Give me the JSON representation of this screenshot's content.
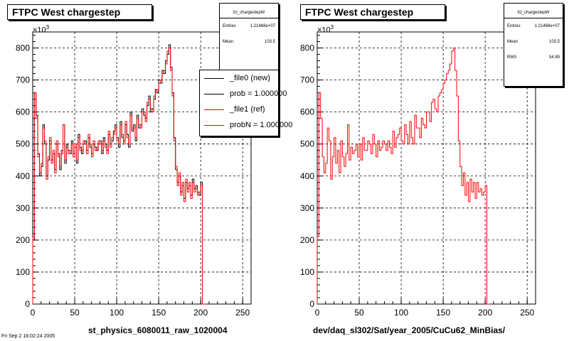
{
  "chart_data": [
    {
      "type": "line",
      "title": "FTPC West chargestep",
      "xlabel": "st_physics_6080011_raw_1020004",
      "ylabel": "",
      "y_exponent_label": "×10",
      "y_exponent_power": "3",
      "xlim": [
        0,
        260
      ],
      "ylim": [
        0,
        850
      ],
      "xticks": [
        "0",
        "50",
        "100",
        "150",
        "200",
        "250"
      ],
      "yticks": [
        "0",
        "100",
        "200",
        "300",
        "400",
        "500",
        "600",
        "700",
        "800"
      ],
      "grid": true,
      "stats": {
        "name": "fcl_chargestepW",
        "rows": [
          {
            "label": "Entries",
            "value": "1.21468e+07"
          },
          {
            "label": "Mean",
            "value": "103.5"
          }
        ]
      },
      "legend": {
        "placement": "top-right",
        "entries": [
          {
            "label": "_file0 (new)",
            "color": "#000000"
          },
          {
            "label": "prob = 1.000000",
            "color": "#000000"
          },
          {
            "label": "_file1 (ref)",
            "color": "#ff0000"
          },
          {
            "label": "probN = 1.000000",
            "color": "#ff0000"
          }
        ]
      },
      "series": [
        {
          "name": "_file0 (new)",
          "color": "#000000",
          "x": [
            0,
            2,
            4,
            6,
            8,
            10,
            12,
            14,
            16,
            18,
            20,
            22,
            24,
            26,
            28,
            30,
            32,
            34,
            36,
            38,
            40,
            42,
            44,
            46,
            48,
            50,
            52,
            54,
            56,
            58,
            60,
            62,
            64,
            66,
            68,
            70,
            72,
            74,
            76,
            78,
            80,
            82,
            84,
            86,
            88,
            90,
            92,
            94,
            96,
            98,
            100,
            102,
            104,
            106,
            108,
            110,
            112,
            114,
            116,
            118,
            120,
            122,
            124,
            126,
            128,
            130,
            132,
            134,
            136,
            138,
            140,
            142,
            144,
            146,
            148,
            150,
            152,
            154,
            156,
            158,
            160,
            162,
            164,
            166,
            168,
            170,
            172,
            174,
            176,
            178,
            180,
            182,
            184,
            186,
            188,
            190,
            192,
            194,
            196,
            198,
            200,
            202,
            204
          ],
          "y": [
            200,
            660,
            590,
            470,
            400,
            430,
            560,
            500,
            400,
            450,
            510,
            450,
            470,
            420,
            500,
            470,
            420,
            480,
            560,
            440,
            500,
            480,
            470,
            510,
            470,
            490,
            440,
            530,
            490,
            470,
            500,
            510,
            480,
            520,
            490,
            470,
            500,
            490,
            480,
            500,
            510,
            470,
            520,
            500,
            480,
            530,
            500,
            510,
            540,
            560,
            520,
            490,
            570,
            520,
            510,
            560,
            530,
            490,
            600,
            540,
            560,
            510,
            590,
            550,
            560,
            610,
            590,
            580,
            620,
            650,
            600,
            610,
            640,
            670,
            660,
            700,
            690,
            730,
            720,
            760,
            780,
            810,
            740,
            660,
            520,
            420,
            380,
            400,
            350,
            370,
            330,
            380,
            360,
            370,
            340,
            390,
            360,
            370,
            350,
            340,
            380,
            0,
            0
          ]
        },
        {
          "name": "_file1 (ref)",
          "color": "#ff0000",
          "x": [
            0,
            2,
            4,
            6,
            8,
            10,
            12,
            14,
            16,
            18,
            20,
            22,
            24,
            26,
            28,
            30,
            32,
            34,
            36,
            38,
            40,
            42,
            44,
            46,
            48,
            50,
            52,
            54,
            56,
            58,
            60,
            62,
            64,
            66,
            68,
            70,
            72,
            74,
            76,
            78,
            80,
            82,
            84,
            86,
            88,
            90,
            92,
            94,
            96,
            98,
            100,
            102,
            104,
            106,
            108,
            110,
            112,
            114,
            116,
            118,
            120,
            122,
            124,
            126,
            128,
            130,
            132,
            134,
            136,
            138,
            140,
            142,
            144,
            146,
            148,
            150,
            152,
            154,
            156,
            158,
            160,
            162,
            164,
            166,
            168,
            170,
            172,
            174,
            176,
            178,
            180,
            182,
            184,
            186,
            188,
            190,
            192,
            194,
            196,
            198,
            200,
            202,
            204
          ],
          "y": [
            210,
            660,
            580,
            460,
            410,
            440,
            550,
            510,
            390,
            460,
            520,
            440,
            480,
            410,
            510,
            460,
            430,
            470,
            560,
            450,
            490,
            470,
            480,
            500,
            460,
            500,
            450,
            520,
            480,
            480,
            510,
            500,
            470,
            530,
            500,
            460,
            510,
            480,
            490,
            510,
            500,
            480,
            510,
            490,
            470,
            540,
            490,
            520,
            530,
            550,
            510,
            500,
            560,
            530,
            500,
            570,
            520,
            500,
            590,
            550,
            550,
            520,
            580,
            560,
            550,
            600,
            600,
            570,
            630,
            640,
            610,
            600,
            650,
            660,
            670,
            690,
            700,
            720,
            730,
            750,
            790,
            800,
            730,
            650,
            510,
            430,
            370,
            410,
            340,
            380,
            320,
            390,
            350,
            380,
            330,
            380,
            350,
            360,
            340,
            350,
            370,
            0,
            0
          ]
        }
      ]
    },
    {
      "type": "line",
      "title": "FTPC West chargestep",
      "xlabel": "dev/daq_sl302/Sat/year_2005/CuCu62_MinBias/",
      "ylabel": "",
      "y_exponent_label": "×10",
      "y_exponent_power": "3",
      "xlim": [
        0,
        260
      ],
      "ylim": [
        0,
        850
      ],
      "xticks": [
        "0",
        "50",
        "100",
        "150",
        "200",
        "250"
      ],
      "yticks": [
        "0",
        "100",
        "200",
        "300",
        "400",
        "500",
        "600",
        "700",
        "800"
      ],
      "grid": true,
      "stats": {
        "name": "fcl_chargestepW",
        "rows": [
          {
            "label": "Entries",
            "value": "1.21468e+07"
          },
          {
            "label": "Mean",
            "value": "103.5"
          },
          {
            "label": "RMS",
            "value": "54.89"
          }
        ]
      },
      "series": [
        {
          "name": "",
          "color": "#ff0000",
          "x": [
            0,
            2,
            4,
            6,
            8,
            10,
            12,
            14,
            16,
            18,
            20,
            22,
            24,
            26,
            28,
            30,
            32,
            34,
            36,
            38,
            40,
            42,
            44,
            46,
            48,
            50,
            52,
            54,
            56,
            58,
            60,
            62,
            64,
            66,
            68,
            70,
            72,
            74,
            76,
            78,
            80,
            82,
            84,
            86,
            88,
            90,
            92,
            94,
            96,
            98,
            100,
            102,
            104,
            106,
            108,
            110,
            112,
            114,
            116,
            118,
            120,
            122,
            124,
            126,
            128,
            130,
            132,
            134,
            136,
            138,
            140,
            142,
            144,
            146,
            148,
            150,
            152,
            154,
            156,
            158,
            160,
            162,
            164,
            166,
            168,
            170,
            172,
            174,
            176,
            178,
            180,
            182,
            184,
            186,
            188,
            190,
            192,
            194,
            196,
            198,
            200,
            202,
            204
          ],
          "y": [
            210,
            660,
            580,
            460,
            410,
            440,
            550,
            510,
            390,
            460,
            520,
            440,
            480,
            410,
            510,
            460,
            430,
            470,
            560,
            450,
            490,
            470,
            480,
            500,
            460,
            500,
            450,
            520,
            480,
            480,
            510,
            500,
            470,
            530,
            500,
            460,
            510,
            480,
            490,
            510,
            500,
            480,
            510,
            490,
            470,
            540,
            490,
            520,
            530,
            550,
            510,
            500,
            560,
            530,
            500,
            570,
            520,
            500,
            590,
            550,
            550,
            520,
            580,
            560,
            550,
            600,
            600,
            570,
            630,
            640,
            610,
            600,
            650,
            660,
            670,
            690,
            700,
            720,
            730,
            750,
            790,
            800,
            730,
            650,
            510,
            430,
            370,
            410,
            340,
            380,
            320,
            390,
            350,
            380,
            330,
            380,
            350,
            360,
            340,
            350,
            370,
            0,
            0
          ]
        }
      ]
    }
  ],
  "footer": "Fri Sep  2 16:02:24 2005"
}
